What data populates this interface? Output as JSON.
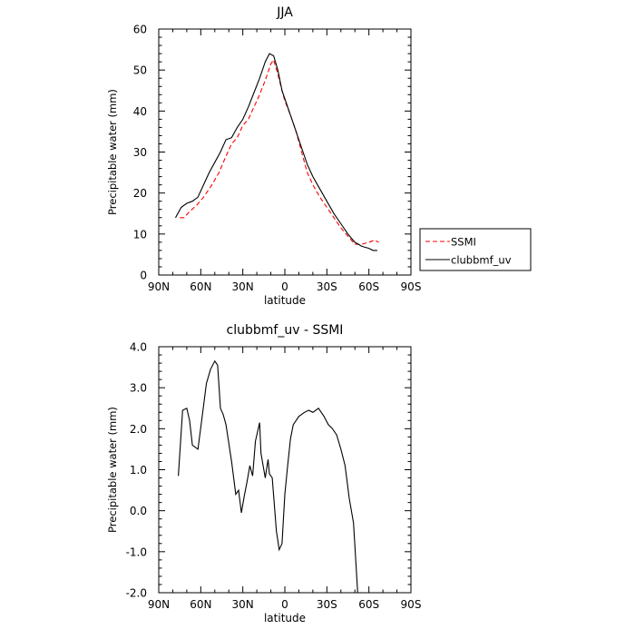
{
  "chart_data": [
    {
      "type": "line",
      "title": "JJA",
      "xlabel": "latitude",
      "ylabel": "Precipitable water  (mm)",
      "xlim": [
        90,
        -90
      ],
      "ylim": [
        0,
        60
      ],
      "x_ticks": [
        90,
        60,
        30,
        0,
        -30,
        -60,
        -90
      ],
      "x_tick_labels": [
        "90N",
        "60N",
        "30N",
        "0",
        "30S",
        "60S",
        "90S"
      ],
      "y_ticks": [
        0,
        10,
        20,
        30,
        40,
        50,
        60
      ],
      "y_tick_labels": [
        "0",
        "10",
        "20",
        "30",
        "40",
        "50",
        "60"
      ],
      "legend": "outside-right",
      "series": [
        {
          "name": "SSMI",
          "color": "#ff0000",
          "dash": "dashed",
          "x": [
            75,
            72,
            68,
            63,
            58,
            52,
            47,
            42,
            38,
            34,
            30,
            26,
            22,
            18,
            14,
            10,
            8,
            5,
            2,
            0,
            -4,
            -8,
            -12,
            -16,
            -20,
            -25,
            -30,
            -35,
            -40,
            -45,
            -50,
            -55,
            -60,
            -64,
            -67
          ],
          "y": [
            14,
            14,
            15.5,
            17,
            19,
            22,
            25,
            29,
            32,
            33.5,
            36.5,
            38,
            41,
            44,
            47.5,
            51.5,
            52.5,
            49,
            45,
            42.5,
            39,
            35,
            30,
            25,
            22,
            19,
            16.5,
            14,
            11.5,
            9.5,
            7.5,
            7.5,
            8,
            8.5,
            8
          ]
        },
        {
          "name": "clubbmf_uv",
          "color": "#000000",
          "dash": "solid",
          "x": [
            78,
            74,
            70,
            66,
            62,
            58,
            54,
            50,
            46,
            42,
            38,
            34,
            30,
            26,
            22,
            18,
            14,
            11,
            8,
            5,
            2,
            0,
            -4,
            -8,
            -12,
            -16,
            -20,
            -25,
            -30,
            -35,
            -40,
            -45,
            -50,
            -55,
            -60,
            -63,
            -66
          ],
          "y": [
            14,
            16.5,
            17.5,
            18,
            19,
            22,
            25,
            27.5,
            30,
            33,
            33.5,
            36,
            38,
            41,
            44.5,
            48,
            52,
            54,
            53.5,
            50,
            45,
            43,
            39,
            35,
            31,
            27,
            24,
            21,
            18,
            15,
            12.5,
            10,
            8,
            7,
            6.5,
            6,
            6
          ]
        }
      ]
    },
    {
      "type": "line",
      "title": "clubbmf_uv - SSMI",
      "xlabel": "latitude",
      "ylabel": "Precipitable water  (mm)",
      "xlim": [
        90,
        -90
      ],
      "ylim": [
        -2.0,
        4.0
      ],
      "x_ticks": [
        90,
        60,
        30,
        0,
        -30,
        -60,
        -90
      ],
      "x_tick_labels": [
        "90N",
        "60N",
        "30N",
        "0",
        "30S",
        "60S",
        "90S"
      ],
      "y_ticks": [
        -2.0,
        -1.0,
        0.0,
        1.0,
        2.0,
        3.0,
        4.0
      ],
      "y_tick_labels": [
        "-2.0",
        "-1.0",
        "0.0",
        "1.0",
        "2.0",
        "3.0",
        "4.0"
      ],
      "series": [
        {
          "color": "#000000",
          "x": [
            76,
            73,
            70,
            68,
            66,
            62,
            59,
            56,
            53,
            50,
            48,
            46,
            44,
            42,
            40,
            38,
            35,
            33,
            31,
            29,
            27,
            25,
            23,
            21,
            18,
            17,
            14,
            12,
            11,
            9,
            6,
            4,
            2,
            0,
            -2,
            -4,
            -6,
            -8,
            -10,
            -14,
            -17,
            -20,
            -24,
            -28,
            -31,
            -34,
            -37,
            -40,
            -43,
            -46,
            -49,
            -52,
            -55,
            -57,
            -59,
            -61,
            -63,
            -65
          ],
          "y": [
            0.85,
            2.45,
            2.5,
            2.2,
            1.6,
            1.5,
            2.3,
            3.1,
            3.45,
            3.65,
            3.55,
            2.5,
            2.35,
            2.1,
            1.65,
            1.2,
            0.4,
            0.5,
            -0.05,
            0.35,
            0.7,
            1.1,
            0.85,
            1.7,
            2.15,
            1.4,
            0.8,
            1.25,
            0.9,
            0.8,
            -0.5,
            -0.95,
            -0.8,
            0.4,
            1.1,
            1.75,
            2.1,
            2.2,
            2.3,
            2.4,
            2.45,
            2.4,
            2.5,
            2.3,
            2.1,
            2.0,
            1.85,
            1.5,
            1.1,
            0.3,
            -0.3,
            -2.0,
            -2.0,
            -2.0,
            -2.0,
            -2.0,
            -2.0,
            -2.0
          ]
        }
      ]
    }
  ]
}
